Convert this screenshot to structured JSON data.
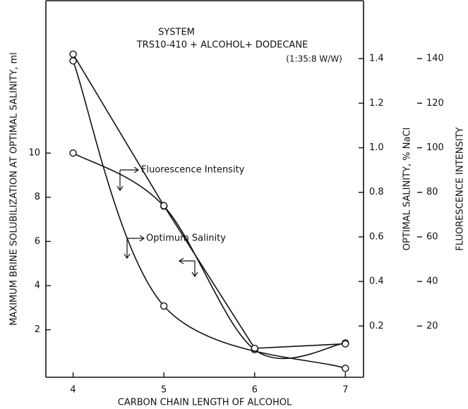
{
  "chart_data": {
    "type": "line",
    "title": "SYSTEM",
    "subtitle": "TRS10-410 + ALCOHOL+ DODECANE",
    "annotations": [
      "(1:35:8 W/W)"
    ],
    "x_label": "CARBON CHAIN LENGTH OF ALCOHOL",
    "y_label": "MAXIMUM BRINE SOLUBILIZATION AT OPTIMAL SALINITY, ml",
    "y2_label": "OPTIMAL SALINITY, % NaCl",
    "y3_label": "FLUORESCENCE INTENSITY",
    "xlim": [
      3.7,
      7.2
    ],
    "xticks": [
      4,
      5,
      6,
      7
    ],
    "ylim": [
      -0.15,
      16.9
    ],
    "yticks": [
      2,
      4,
      6,
      8,
      10
    ],
    "y2lim": [
      -0.03,
      1.66
    ],
    "y2ticks": [
      0.2,
      0.4,
      0.6,
      0.8,
      {
        "value": 1,
        "label": "1.0"
      },
      1.2,
      1.4
    ],
    "y3lim": [
      -3,
      166
    ],
    "y3ticks": [
      20,
      40,
      60,
      80,
      100,
      120,
      140
    ],
    "series": [
      {
        "color": "#111111",
        "axis": "y",
        "x": [
          4,
          5,
          6,
          7
        ],
        "values": [
          10.0,
          7.6,
          1.1,
          1.4
        ]
      },
      {
        "name": "Fluorescence Intensity",
        "color": "#111111",
        "axis": "y3",
        "x": [
          4,
          5,
          6,
          7
        ],
        "values": [
          142,
          74,
          10,
          12
        ]
      },
      {
        "name": "Optimum Salinity",
        "color": "#111111",
        "axis": "y2",
        "x": [
          4,
          5,
          7
        ],
        "values": [
          1.39,
          0.29,
          0.01
        ]
      }
    ]
  }
}
